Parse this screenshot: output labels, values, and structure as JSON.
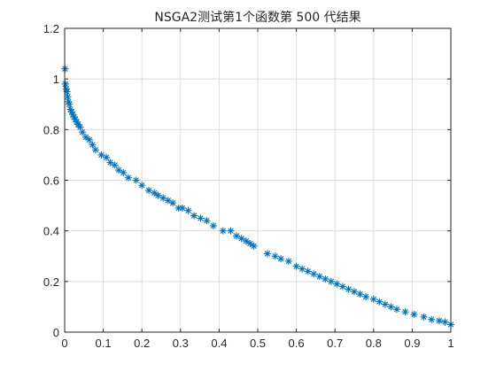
{
  "chart_data": {
    "type": "scatter",
    "title": "NSGA2测试第1个函数第 500 代结果",
    "xlabel": "",
    "ylabel": "",
    "xlim": [
      0,
      1
    ],
    "ylim": [
      0,
      1.2
    ],
    "xticks": [
      "0",
      "0.1",
      "0.2",
      "0.3",
      "0.4",
      "0.5",
      "0.6",
      "0.7",
      "0.8",
      "0.9",
      "1"
    ],
    "yticks": [
      "0",
      "0.2",
      "0.4",
      "0.6",
      "0.8",
      "1",
      "1.2"
    ],
    "grid": true,
    "marker": "asterisk",
    "series": [
      {
        "color": "#0072bd",
        "x": [
          0.001,
          0.002,
          0.004,
          0.006,
          0.008,
          0.01,
          0.012,
          0.015,
          0.018,
          0.021,
          0.024,
          0.028,
          0.031,
          0.035,
          0.04,
          0.046,
          0.055,
          0.064,
          0.072,
          0.08,
          0.095,
          0.108,
          0.118,
          0.13,
          0.14,
          0.152,
          0.165,
          0.185,
          0.2,
          0.218,
          0.232,
          0.242,
          0.255,
          0.268,
          0.28,
          0.295,
          0.305,
          0.32,
          0.335,
          0.352,
          0.368,
          0.385,
          0.41,
          0.43,
          0.445,
          0.458,
          0.47,
          0.48,
          0.49,
          0.525,
          0.545,
          0.56,
          0.58,
          0.6,
          0.615,
          0.63,
          0.645,
          0.66,
          0.675,
          0.69,
          0.705,
          0.72,
          0.735,
          0.75,
          0.765,
          0.78,
          0.8,
          0.815,
          0.83,
          0.845,
          0.86,
          0.882,
          0.905,
          0.93,
          0.95,
          0.97,
          0.985,
          1.0
        ],
        "y": [
          1.04,
          0.98,
          0.96,
          0.95,
          0.93,
          0.91,
          0.9,
          0.88,
          0.87,
          0.86,
          0.85,
          0.84,
          0.83,
          0.82,
          0.81,
          0.79,
          0.77,
          0.76,
          0.74,
          0.72,
          0.7,
          0.69,
          0.67,
          0.66,
          0.64,
          0.63,
          0.61,
          0.6,
          0.58,
          0.56,
          0.55,
          0.54,
          0.53,
          0.52,
          0.51,
          0.49,
          0.49,
          0.48,
          0.46,
          0.45,
          0.44,
          0.42,
          0.4,
          0.4,
          0.38,
          0.37,
          0.36,
          0.35,
          0.34,
          0.31,
          0.3,
          0.29,
          0.28,
          0.26,
          0.25,
          0.24,
          0.23,
          0.22,
          0.21,
          0.2,
          0.19,
          0.18,
          0.17,
          0.16,
          0.15,
          0.14,
          0.13,
          0.12,
          0.11,
          0.1,
          0.09,
          0.08,
          0.07,
          0.06,
          0.05,
          0.045,
          0.04,
          0.03
        ]
      }
    ]
  }
}
